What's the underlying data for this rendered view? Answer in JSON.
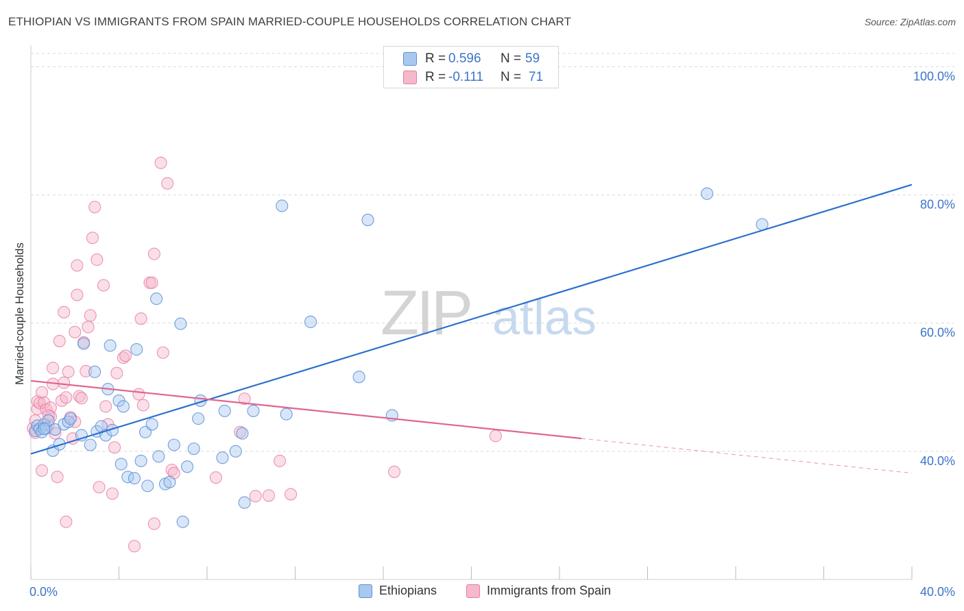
{
  "header": {
    "title": "ETHIOPIAN VS IMMIGRANTS FROM SPAIN MARRIED-COUPLE HOUSEHOLDS CORRELATION CHART",
    "source": "Source: ZipAtlas.com"
  },
  "watermark": {
    "zip": "ZIP",
    "atlas": "atlas"
  },
  "colors": {
    "blue_fill": "#a9c8ef",
    "blue_stroke": "#5b8fd6",
    "blue_line": "#2c6fcd",
    "pink_fill": "#f5b9cc",
    "pink_stroke": "#e87a9d",
    "pink_line": "#e0648e",
    "axis_label": "#3b74c9",
    "grid": "#d9d9d9"
  },
  "legend_top": {
    "rows": [
      {
        "r_label": "R =",
        "r_value": "0.596",
        "n_label": "N =",
        "n_value": "59"
      },
      {
        "r_label": "R =",
        "r_value": "-0.111",
        "n_label": "N =",
        "n_value": "71"
      }
    ]
  },
  "legend_bottom": {
    "items": [
      {
        "label": "Ethiopians"
      },
      {
        "label": "Immigrants from Spain"
      }
    ]
  },
  "chart_data": {
    "type": "scatter",
    "title": "ETHIOPIAN VS IMMIGRANTS FROM SPAIN MARRIED-COUPLE HOUSEHOLDS CORRELATION CHART",
    "xlabel": "",
    "ylabel": "Married-couple Households",
    "xlim": [
      0,
      40
    ],
    "ylim": [
      20,
      104
    ],
    "x_tick_labels": [
      {
        "value": 0,
        "label": "0.0%"
      },
      {
        "value": 40,
        "label": "40.0%"
      }
    ],
    "y_tick_labels": [
      {
        "value": 40,
        "label": "40.0%"
      },
      {
        "value": 60,
        "label": "60.0%"
      },
      {
        "value": 80,
        "label": "80.0%"
      },
      {
        "value": 100,
        "label": "100.0%"
      }
    ],
    "grid": true,
    "legend_position": "top-center",
    "series": [
      {
        "name": "Ethiopians",
        "color": "#a9c8ef",
        "points": [
          [
            0.2,
            43.2
          ],
          [
            0.3,
            44.0
          ],
          [
            0.4,
            43.5
          ],
          [
            0.5,
            43.0
          ],
          [
            0.6,
            44.2
          ],
          [
            0.7,
            43.6
          ],
          [
            0.8,
            44.8
          ],
          [
            1.0,
            40.1
          ],
          [
            1.1,
            43.4
          ],
          [
            1.3,
            41.1
          ],
          [
            1.5,
            44.2
          ],
          [
            1.7,
            44.6
          ],
          [
            1.8,
            45.1
          ],
          [
            2.3,
            42.5
          ],
          [
            2.4,
            56.8
          ],
          [
            2.7,
            41.0
          ],
          [
            2.9,
            52.4
          ],
          [
            3.0,
            43.1
          ],
          [
            3.2,
            43.9
          ],
          [
            3.4,
            42.5
          ],
          [
            3.5,
            49.7
          ],
          [
            3.6,
            56.5
          ],
          [
            3.7,
            43.3
          ],
          [
            4.0,
            47.9
          ],
          [
            4.1,
            38.0
          ],
          [
            4.2,
            47.0
          ],
          [
            4.4,
            36.0
          ],
          [
            4.7,
            35.8
          ],
          [
            4.8,
            55.9
          ],
          [
            5.0,
            38.5
          ],
          [
            5.2,
            43.0
          ],
          [
            5.3,
            34.6
          ],
          [
            5.5,
            44.2
          ],
          [
            5.7,
            63.8
          ],
          [
            5.8,
            39.2
          ],
          [
            6.1,
            34.9
          ],
          [
            6.3,
            35.2
          ],
          [
            6.5,
            41.0
          ],
          [
            6.8,
            59.9
          ],
          [
            6.9,
            29.0
          ],
          [
            7.1,
            37.6
          ],
          [
            7.4,
            40.4
          ],
          [
            7.6,
            45.1
          ],
          [
            7.7,
            47.9
          ],
          [
            8.7,
            39.0
          ],
          [
            8.8,
            46.3
          ],
          [
            9.3,
            40.0
          ],
          [
            9.6,
            42.8
          ],
          [
            9.7,
            32.0
          ],
          [
            10.1,
            46.3
          ],
          [
            11.4,
            78.3
          ],
          [
            11.6,
            45.8
          ],
          [
            12.7,
            60.2
          ],
          [
            14.9,
            51.6
          ],
          [
            15.3,
            76.1
          ],
          [
            16.4,
            45.6
          ],
          [
            30.7,
            80.2
          ],
          [
            33.2,
            75.4
          ],
          [
            0.6,
            43.5
          ]
        ]
      },
      {
        "name": "Immigrants from Spain",
        "color": "#f5b9cc",
        "points": [
          [
            0.1,
            43.6
          ],
          [
            0.2,
            44.8
          ],
          [
            0.2,
            42.9
          ],
          [
            0.3,
            46.6
          ],
          [
            0.3,
            47.8
          ],
          [
            0.4,
            47.5
          ],
          [
            0.5,
            49.2
          ],
          [
            0.5,
            37.0
          ],
          [
            0.6,
            47.6
          ],
          [
            0.7,
            46.5
          ],
          [
            0.8,
            44.0
          ],
          [
            0.9,
            46.8
          ],
          [
            0.9,
            45.4
          ],
          [
            1.0,
            53.0
          ],
          [
            1.0,
            50.5
          ],
          [
            1.1,
            42.8
          ],
          [
            1.2,
            36.0
          ],
          [
            1.3,
            57.2
          ],
          [
            1.4,
            47.9
          ],
          [
            1.5,
            50.7
          ],
          [
            1.5,
            61.7
          ],
          [
            1.6,
            29.0
          ],
          [
            1.6,
            48.4
          ],
          [
            1.7,
            52.4
          ],
          [
            1.8,
            45.3
          ],
          [
            1.9,
            42.0
          ],
          [
            2.0,
            44.6
          ],
          [
            2.0,
            58.6
          ],
          [
            2.1,
            64.4
          ],
          [
            2.1,
            69.0
          ],
          [
            2.2,
            48.6
          ],
          [
            2.3,
            48.3
          ],
          [
            2.4,
            57.0
          ],
          [
            2.5,
            52.5
          ],
          [
            2.6,
            59.4
          ],
          [
            2.7,
            61.2
          ],
          [
            2.8,
            73.3
          ],
          [
            2.9,
            78.1
          ],
          [
            3.0,
            69.9
          ],
          [
            3.1,
            34.4
          ],
          [
            3.3,
            65.9
          ],
          [
            3.4,
            47.0
          ],
          [
            3.5,
            44.2
          ],
          [
            3.7,
            33.4
          ],
          [
            3.8,
            40.6
          ],
          [
            3.9,
            52.2
          ],
          [
            4.2,
            54.6
          ],
          [
            4.3,
            54.9
          ],
          [
            4.7,
            25.2
          ],
          [
            4.9,
            48.9
          ],
          [
            5.0,
            60.7
          ],
          [
            5.1,
            47.2
          ],
          [
            5.4,
            66.3
          ],
          [
            5.5,
            66.3
          ],
          [
            5.6,
            70.8
          ],
          [
            5.6,
            28.7
          ],
          [
            6.0,
            55.4
          ],
          [
            6.2,
            81.8
          ],
          [
            6.4,
            37.1
          ],
          [
            6.5,
            36.6
          ],
          [
            5.9,
            85.0
          ],
          [
            8.4,
            35.9
          ],
          [
            9.5,
            43.0
          ],
          [
            9.7,
            48.2
          ],
          [
            10.2,
            33.0
          ],
          [
            10.8,
            33.1
          ],
          [
            11.3,
            38.5
          ],
          [
            11.8,
            33.3
          ],
          [
            16.5,
            36.8
          ],
          [
            21.1,
            42.4
          ],
          [
            0.8,
            45.6
          ]
        ]
      }
    ],
    "trend_lines": [
      {
        "series": "Ethiopians",
        "x_start": 0,
        "y_start": 39.6,
        "x_end": 40,
        "y_end": 81.6,
        "style": "solid"
      },
      {
        "series": "Immigrants from Spain",
        "x_start": 0,
        "y_start": 51.0,
        "x_end": 25,
        "y_end": 42.0,
        "style": "solid"
      },
      {
        "series": "Immigrants from Spain",
        "x_start": 25,
        "y_start": 42.0,
        "x_end": 40,
        "y_end": 36.6,
        "style": "dashed"
      }
    ]
  }
}
